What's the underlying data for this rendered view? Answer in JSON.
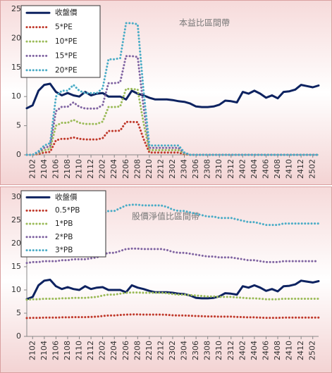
{
  "chart_data": [
    {
      "type": "line",
      "annotation": "本益比區間帶",
      "legend": "upper left",
      "categories": [
        null,
        "2102",
        null,
        "2104",
        null,
        "2106",
        null,
        "2108",
        null,
        "2110",
        null,
        "2112",
        null,
        "2202",
        null,
        "2204",
        null,
        "2206",
        null,
        "2208",
        null,
        "2210",
        null,
        "2212",
        null,
        "2302",
        null,
        "2304",
        null,
        "2306",
        null,
        "2308",
        null,
        "2310",
        null,
        "2312",
        null,
        "2402",
        null,
        "2404",
        null,
        "2406",
        null,
        "2408",
        null,
        "2410",
        null,
        "2412",
        null,
        "2502",
        null
      ],
      "ylim": [
        0,
        25
      ],
      "yticks": [
        0,
        5,
        10,
        15,
        20,
        25
      ],
      "series": [
        {
          "name": "收盤價",
          "color": "#0d2260",
          "style": "solid",
          "values": [
            8,
            8.5,
            11,
            12,
            12.2,
            10.8,
            10.2,
            10.6,
            10.2,
            10,
            10.8,
            10.2,
            10.5,
            10.6,
            10,
            10,
            10,
            9.5,
            11,
            10.5,
            10.2,
            9.8,
            9.5,
            9.5,
            9.5,
            9.4,
            9.2,
            9.1,
            8.8,
            8.3,
            8.2,
            8.2,
            8.3,
            8.6,
            9.3,
            9.2,
            9,
            10.8,
            10.5,
            11,
            10.5,
            9.8,
            10.2,
            9.7,
            10.8,
            10.9,
            11.2,
            12,
            11.8,
            11.6,
            11.9
          ]
        },
        {
          "name": "5*PE",
          "color": "#c0392b",
          "style": "dotted",
          "values": [
            0,
            0,
            0.15,
            0.4,
            0.5,
            2.5,
            2.75,
            2.75,
            3,
            2.75,
            2.65,
            2.65,
            2.65,
            2.85,
            4.1,
            4.1,
            4.15,
            5.65,
            5.65,
            5.6,
            2.75,
            0.4,
            0.4,
            0.4,
            0.4,
            0.4,
            0.4,
            0.1,
            0,
            0,
            0,
            0,
            0,
            0,
            0,
            0,
            0,
            0,
            0,
            0,
            0,
            0,
            0,
            0,
            0,
            0,
            0,
            0,
            0,
            0,
            0
          ]
        },
        {
          "name": "10*PE",
          "color": "#9bbb59",
          "style": "dotted",
          "values": [
            0,
            0,
            0.3,
            0.8,
            1,
            5,
            5.5,
            5.5,
            6,
            5.5,
            5.3,
            5.3,
            5.3,
            5.7,
            8.2,
            8.2,
            8.3,
            11.3,
            11.3,
            11.2,
            5.5,
            0.8,
            0.8,
            0.8,
            0.8,
            0.8,
            0.8,
            0.2,
            0,
            0,
            0,
            0,
            0,
            0,
            0,
            0,
            0,
            0,
            0,
            0,
            0,
            0,
            0,
            0,
            0,
            0,
            0,
            0,
            0,
            0,
            0
          ]
        },
        {
          "name": "15*PE",
          "color": "#8064a2",
          "style": "dotted",
          "values": [
            0,
            0,
            0.45,
            1.2,
            1.5,
            7.5,
            8.25,
            8.25,
            9,
            8.25,
            7.95,
            7.95,
            7.95,
            8.55,
            12.3,
            12.3,
            12.45,
            16.95,
            16.95,
            16.8,
            8.25,
            1.2,
            1.2,
            1.2,
            1.2,
            1.2,
            1.2,
            0.3,
            0,
            0,
            0,
            0,
            0,
            0,
            0,
            0,
            0,
            0,
            0,
            0,
            0,
            0,
            0,
            0,
            0,
            0,
            0,
            0,
            0,
            0,
            0
          ]
        },
        {
          "name": "20*PE",
          "color": "#4bacc6",
          "style": "dotted",
          "values": [
            0,
            0,
            0.6,
            1.6,
            2,
            10,
            11,
            11,
            12,
            11,
            10.6,
            10.6,
            10.6,
            11.4,
            16.4,
            16.4,
            16.6,
            22.6,
            22.6,
            22.4,
            11,
            1.6,
            1.6,
            1.6,
            1.6,
            1.6,
            1.6,
            0.4,
            0,
            0,
            0,
            0,
            0,
            0,
            0,
            0,
            0,
            0,
            0,
            0,
            0,
            0,
            0,
            0,
            0,
            0,
            0,
            0,
            0,
            0,
            0
          ]
        }
      ]
    },
    {
      "type": "line",
      "annotation": "股價淨值比區間帶",
      "legend": "upper left",
      "categories": [
        null,
        "2102",
        null,
        "2104",
        null,
        "2106",
        null,
        "2108",
        null,
        "2110",
        null,
        "2112",
        null,
        "2202",
        null,
        "2204",
        null,
        "2206",
        null,
        "2208",
        null,
        "2210",
        null,
        "2212",
        null,
        "2302",
        null,
        "2304",
        null,
        "2306",
        null,
        "2308",
        null,
        "2310",
        null,
        "2312",
        null,
        "2402",
        null,
        "2404",
        null,
        "2406",
        null,
        "2408",
        null,
        "2410",
        null,
        "2412",
        null,
        "2502",
        null
      ],
      "ylim": [
        0,
        30
      ],
      "yticks": [
        0,
        5,
        10,
        15,
        20,
        25,
        30
      ],
      "series": [
        {
          "name": "收盤價",
          "color": "#0d2260",
          "style": "solid",
          "values": [
            8,
            8.5,
            11,
            12,
            12.2,
            10.8,
            10.2,
            10.6,
            10.2,
            10,
            10.8,
            10.2,
            10.5,
            10.6,
            10,
            10,
            10,
            9.5,
            11,
            10.5,
            10.2,
            9.8,
            9.5,
            9.5,
            9.5,
            9.4,
            9.2,
            9.1,
            8.8,
            8.3,
            8.2,
            8.2,
            8.3,
            8.6,
            9.3,
            9.2,
            9,
            10.8,
            10.5,
            11,
            10.5,
            9.8,
            10.2,
            9.7,
            10.8,
            10.9,
            11.2,
            12,
            11.8,
            11.6,
            11.9
          ]
        },
        {
          "name": "0.5*PB",
          "color": "#c0392b",
          "style": "dotted",
          "values": [
            3.95,
            4,
            4,
            4.05,
            4.05,
            4.05,
            4.1,
            4.1,
            4.15,
            4.15,
            4.15,
            4.2,
            4.25,
            4.4,
            4.5,
            4.5,
            4.6,
            4.7,
            4.73,
            4.73,
            4.7,
            4.7,
            4.7,
            4.7,
            4.65,
            4.55,
            4.5,
            4.5,
            4.45,
            4.4,
            4.35,
            4.3,
            4.3,
            4.25,
            4.25,
            4.25,
            4.2,
            4.15,
            4.1,
            4.1,
            4.05,
            4,
            4,
            4,
            4.05,
            4.05,
            4.05,
            4.05,
            4.05,
            4.05,
            4.05
          ]
        },
        {
          "name": "1*PB",
          "color": "#9bbb59",
          "style": "dotted",
          "values": [
            7.9,
            8,
            8,
            8.1,
            8.1,
            8.1,
            8.2,
            8.2,
            8.3,
            8.3,
            8.3,
            8.4,
            8.5,
            8.8,
            9,
            9,
            9.2,
            9.4,
            9.45,
            9.45,
            9.4,
            9.4,
            9.4,
            9.4,
            9.3,
            9.1,
            9,
            9,
            8.9,
            8.8,
            8.7,
            8.6,
            8.6,
            8.5,
            8.5,
            8.5,
            8.4,
            8.3,
            8.2,
            8.2,
            8.1,
            8,
            8,
            8,
            8.1,
            8.1,
            8.1,
            8.1,
            8.1,
            8.1,
            8.1
          ]
        },
        {
          "name": "2*PB",
          "color": "#8064a2",
          "style": "dotted",
          "values": [
            15.8,
            16,
            16,
            16.2,
            16.2,
            16.2,
            16.4,
            16.4,
            16.6,
            16.6,
            16.6,
            16.8,
            17,
            17.6,
            18,
            18,
            18.4,
            18.8,
            18.9,
            18.9,
            18.8,
            18.8,
            18.8,
            18.8,
            18.6,
            18.2,
            18,
            18,
            17.8,
            17.6,
            17.4,
            17.2,
            17.2,
            17,
            17,
            17,
            16.8,
            16.6,
            16.4,
            16.4,
            16.2,
            16,
            16,
            16,
            16.2,
            16.2,
            16.2,
            16.2,
            16.2,
            16.2,
            16.2
          ]
        },
        {
          "name": "3*PB",
          "color": "#4bacc6",
          "style": "dotted",
          "values": [
            23.7,
            24,
            24,
            24.3,
            24.3,
            24.3,
            24.6,
            24.6,
            24.9,
            24.9,
            24.9,
            25.2,
            25.5,
            26.4,
            27,
            27,
            27.6,
            28.2,
            28.35,
            28.35,
            28.2,
            28.2,
            28.2,
            28.2,
            27.9,
            27.3,
            27,
            27,
            26.7,
            26.4,
            26.1,
            25.8,
            25.8,
            25.5,
            25.5,
            25.5,
            25.2,
            24.9,
            24.6,
            24.6,
            24.3,
            24,
            24,
            24,
            24.3,
            24.3,
            24.3,
            24.3,
            24.3,
            24.3,
            24.3
          ]
        }
      ]
    }
  ]
}
